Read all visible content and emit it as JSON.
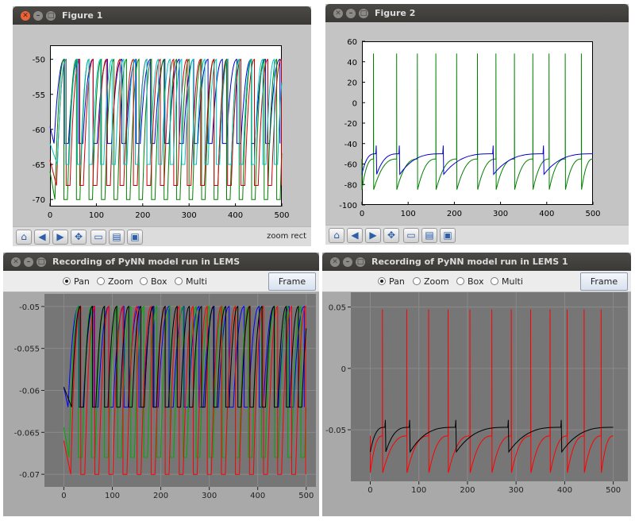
{
  "fig1": {
    "title": "Figure 1",
    "status": "zoom rect",
    "toolbar_icons": [
      "home-icon",
      "back-icon",
      "forward-icon",
      "pan-icon",
      "zoom-icon",
      "configure-icon",
      "save-icon"
    ],
    "chart_data": {
      "type": "line",
      "xlim": [
        0,
        500
      ],
      "ylim": [
        -71,
        -48
      ],
      "xticks": [
        0,
        100,
        200,
        300,
        400,
        500
      ],
      "yticks": [
        -50,
        -55,
        -60,
        -65,
        -70
      ],
      "grid": false,
      "series": [
        {
          "color": "#0000cc",
          "reset": -62,
          "period": 31,
          "phase": 0
        },
        {
          "color": "#008000",
          "reset": -70,
          "period": 27,
          "phase": 3
        },
        {
          "color": "#cc0000",
          "reset": -68,
          "period": 29,
          "phase": 6
        },
        {
          "color": "#00bfbf",
          "reset": -65,
          "period": 25,
          "phase": 9
        }
      ]
    }
  },
  "fig2": {
    "title": "Figure 2",
    "toolbar_icons": [
      "home-icon",
      "back-icon",
      "forward-icon",
      "pan-icon",
      "zoom-icon",
      "configure-icon",
      "save-icon"
    ],
    "chart_data": {
      "type": "line",
      "xlim": [
        0,
        500
      ],
      "ylim": [
        -100,
        60
      ],
      "xticks": [
        0,
        100,
        200,
        300,
        400,
        500
      ],
      "yticks": [
        60,
        40,
        20,
        0,
        -20,
        -40,
        -60,
        -80,
        -100
      ],
      "grid": false,
      "series": [
        {
          "color": "#008000",
          "kind": "spiking"
        },
        {
          "color": "#0000cc",
          "kind": "bursting"
        }
      ]
    }
  },
  "lems1": {
    "title": "Recording of PyNN model run in LEMS",
    "modes": [
      {
        "label": "Pan",
        "selected": true
      },
      {
        "label": "Zoom",
        "selected": false
      },
      {
        "label": "Box",
        "selected": false
      },
      {
        "label": "Multi",
        "selected": false
      }
    ],
    "frame_label": "Frame",
    "chart_data": {
      "type": "line",
      "xlim": [
        -40,
        520
      ],
      "ylim": [
        -0.0715,
        -0.0485
      ],
      "xticks": [
        0,
        100,
        200,
        300,
        400,
        500
      ],
      "yticks": [
        -0.05,
        -0.055,
        -0.06,
        -0.065,
        -0.07
      ],
      "grid": true,
      "series": [
        {
          "color": "#0000ff",
          "reset": -0.062,
          "period": 31,
          "phase": 0
        },
        {
          "color": "#00aa00",
          "reset": -0.068,
          "period": 27,
          "phase": 3
        },
        {
          "color": "#ff0000",
          "reset": -0.07,
          "period": 29,
          "phase": 6
        },
        {
          "color": "#000000",
          "reset": -0.062,
          "period": 25,
          "phase": 9
        }
      ]
    }
  },
  "lems2": {
    "title": "Recording of PyNN model run in LEMS 1",
    "modes": [
      {
        "label": "Pan",
        "selected": true
      },
      {
        "label": "Zoom",
        "selected": false
      },
      {
        "label": "Box",
        "selected": false
      },
      {
        "label": "Multi",
        "selected": false
      }
    ],
    "frame_label": "Frame",
    "chart_data": {
      "type": "line",
      "xlim": [
        -40,
        530
      ],
      "ylim": [
        -0.092,
        0.062
      ],
      "xticks": [
        0,
        100,
        200,
        300,
        400,
        500
      ],
      "yticks": [
        0.05,
        0,
        -0.05
      ],
      "ytick_labels": [
        "0.05",
        "0",
        "-0.05"
      ],
      "grid": true,
      "series": [
        {
          "color": "#ff0000",
          "kind": "spiking"
        },
        {
          "color": "#000000",
          "kind": "bursting"
        }
      ]
    }
  }
}
